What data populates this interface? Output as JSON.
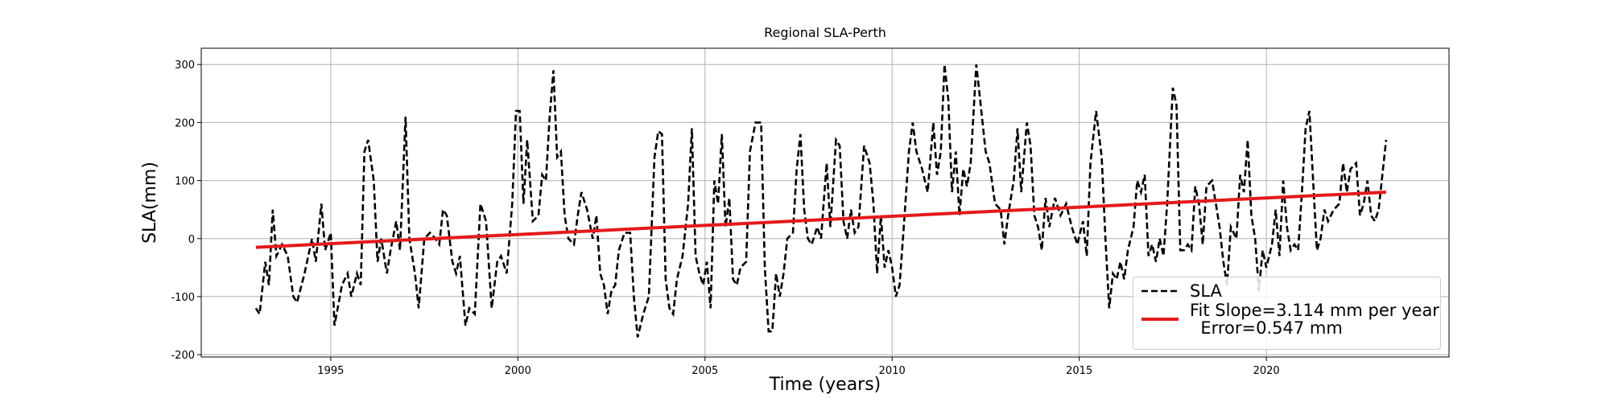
{
  "chart_data": {
    "type": "line",
    "title": "Regional SLA-Perth",
    "xlabel": "Time (years)",
    "ylabel": "SLA(mm)",
    "xlim": [
      1991.54,
      2024.88
    ],
    "ylim": [
      -204,
      328
    ],
    "xticks": [
      1995,
      2000,
      2005,
      2010,
      2015,
      2020
    ],
    "yticks": [
      -200,
      -100,
      0,
      100,
      200,
      300
    ],
    "grid": true,
    "legend": "lower right",
    "series": [
      {
        "name": "SLA",
        "color": "#000000",
        "style": "dashed",
        "x": [
          1993.0,
          1993.1,
          1993.25,
          1993.35,
          1993.45,
          1993.55,
          1993.7,
          1993.85,
          1994.0,
          1994.1,
          1994.3,
          1994.5,
          1994.6,
          1994.75,
          1994.85,
          1995.0,
          1995.1,
          1995.3,
          1995.45,
          1995.55,
          1995.7,
          1995.8,
          1995.9,
          1996.0,
          1996.15,
          1996.25,
          1996.35,
          1996.5,
          1996.6,
          1996.75,
          1996.85,
          1997.0,
          1997.1,
          1997.25,
          1997.35,
          1997.5,
          1997.65,
          1997.8,
          1997.9,
          1998.0,
          1998.1,
          1998.25,
          1998.35,
          1998.45,
          1998.6,
          1998.7,
          1998.85,
          1999.0,
          1999.15,
          1999.3,
          1999.45,
          1999.55,
          1999.7,
          1999.85,
          1999.95,
          2000.05,
          2000.15,
          2000.25,
          2000.4,
          2000.55,
          2000.65,
          2000.75,
          2000.85,
          2000.95,
          2001.05,
          2001.15,
          2001.25,
          2001.35,
          2001.5,
          2001.6,
          2001.7,
          2001.85,
          2002.0,
          2002.1,
          2002.2,
          2002.3,
          2002.4,
          2002.5,
          2002.6,
          2002.7,
          2002.85,
          2003.0,
          2003.1,
          2003.2,
          2003.35,
          2003.5,
          2003.65,
          2003.75,
          2003.85,
          2003.95,
          2004.05,
          2004.15,
          2004.25,
          2004.4,
          2004.55,
          2004.65,
          2004.75,
          2004.85,
          2004.95,
          2005.05,
          2005.15,
          2005.25,
          2005.35,
          2005.45,
          2005.55,
          2005.65,
          2005.75,
          2005.85,
          2005.95,
          2006.1,
          2006.2,
          2006.35,
          2006.5,
          2006.6,
          2006.7,
          2006.8,
          2006.9,
          2007.0,
          2007.1,
          2007.2,
          2007.35,
          2007.45,
          2007.55,
          2007.65,
          2007.75,
          2007.85,
          2008.0,
          2008.1,
          2008.25,
          2008.35,
          2008.5,
          2008.6,
          2008.7,
          2008.8,
          2008.9,
          2009.0,
          2009.1,
          2009.25,
          2009.4,
          2009.5,
          2009.6,
          2009.7,
          2009.8,
          2009.9,
          2010.0,
          2010.1,
          2010.2,
          2010.3,
          2010.45,
          2010.55,
          2010.65,
          2010.8,
          2010.95,
          2011.1,
          2011.2,
          2011.3,
          2011.4,
          2011.5,
          2011.6,
          2011.7,
          2011.8,
          2011.9,
          2012.0,
          2012.1,
          2012.25,
          2012.35,
          2012.5,
          2012.6,
          2012.75,
          2012.9,
          2013.0,
          2013.1,
          2013.25,
          2013.35,
          2013.45,
          2013.6,
          2013.7,
          2013.8,
          2013.9,
          2014.0,
          2014.1,
          2014.2,
          2014.35,
          2014.5,
          2014.65,
          2014.8,
          2014.95,
          2015.1,
          2015.2,
          2015.3,
          2015.45,
          2015.6,
          2015.7,
          2015.8,
          2015.9,
          2016.0,
          2016.1,
          2016.2,
          2016.3,
          2016.45,
          2016.55,
          2016.65,
          2016.75,
          2016.85,
          2016.95,
          2017.05,
          2017.15,
          2017.25,
          2017.35,
          2017.5,
          2017.6,
          2017.7,
          2017.8,
          2017.9,
          2018.0,
          2018.1,
          2018.2,
          2018.3,
          2018.4,
          2018.55,
          2018.65,
          2018.75,
          2018.85,
          2018.95,
          2019.05,
          2019.2,
          2019.3,
          2019.4,
          2019.5,
          2019.6,
          2019.7,
          2019.8,
          2019.9,
          2020.0,
          2020.15,
          2020.25,
          2020.35,
          2020.45,
          2020.55,
          2020.65,
          2020.75,
          2020.85,
          2020.95,
          2021.05,
          2021.15,
          2021.25,
          2021.35,
          2021.45,
          2021.55,
          2021.65,
          2021.8,
          2021.95,
          2022.05,
          2022.15,
          2022.25,
          2022.4,
          2022.5,
          2022.6,
          2022.7,
          2022.8,
          2022.9,
          2023.0,
          2023.2
        ],
        "values": [
          -120,
          -130,
          -40,
          -80,
          50,
          -30,
          -10,
          -30,
          -100,
          -110,
          -60,
          0,
          -40,
          60,
          -20,
          10,
          -150,
          -80,
          -60,
          -100,
          -60,
          -80,
          150,
          170,
          100,
          -40,
          0,
          -60,
          -20,
          30,
          -20,
          210,
          0,
          -60,
          -120,
          0,
          10,
          0,
          -10,
          50,
          40,
          -40,
          -60,
          -30,
          -150,
          -120,
          -130,
          60,
          30,
          -120,
          -40,
          -30,
          -60,
          60,
          220,
          220,
          60,
          170,
          30,
          40,
          110,
          100,
          210,
          290,
          140,
          150,
          40,
          0,
          -10,
          40,
          80,
          50,
          0,
          40,
          -60,
          -80,
          -130,
          -90,
          -80,
          -20,
          10,
          10,
          -100,
          -170,
          -130,
          -100,
          140,
          185,
          180,
          -70,
          -120,
          -130,
          -70,
          -30,
          60,
          190,
          -30,
          -60,
          -80,
          -40,
          -120,
          100,
          60,
          180,
          20,
          70,
          -70,
          -80,
          -50,
          -40,
          150,
          200,
          200,
          -50,
          -160,
          -160,
          -60,
          -100,
          -60,
          0,
          10,
          120,
          180,
          50,
          0,
          -10,
          20,
          0,
          130,
          20,
          170,
          160,
          30,
          0,
          50,
          10,
          20,
          160,
          130,
          60,
          -60,
          40,
          -50,
          -20,
          -50,
          -100,
          -80,
          10,
          150,
          200,
          150,
          120,
          80,
          200,
          110,
          150,
          300,
          240,
          80,
          150,
          40,
          120,
          90,
          130,
          300,
          240,
          150,
          130,
          60,
          50,
          -10,
          40,
          100,
          190,
          80,
          200,
          160,
          40,
          20,
          -20,
          70,
          20,
          70,
          40,
          60,
          20,
          -10,
          30,
          -30,
          130,
          220,
          140,
          0,
          -120,
          -60,
          -70,
          -40,
          -70,
          -20,
          20,
          100,
          80,
          110,
          -30,
          -10,
          -40,
          0,
          -30,
          60,
          260,
          230,
          -20,
          -20,
          -10,
          -20,
          90,
          60,
          -10,
          90,
          100,
          60,
          20,
          -40,
          -80,
          20,
          0,
          110,
          80,
          170,
          40,
          0,
          -90,
          -20,
          -50,
          -10,
          50,
          -30,
          100,
          20,
          -20,
          -10,
          -20,
          80,
          190,
          220,
          100,
          -20,
          0,
          50,
          30,
          50,
          60,
          130,
          80,
          120,
          130,
          40,
          60,
          100,
          40,
          30,
          50,
          170
        ]
      },
      {
        "name": "Fit Slope=3.114 mm per year\n  Error=0.547 mm",
        "color": "#e41a1c",
        "style": "solid",
        "x": [
          1993.0,
          2023.2
        ],
        "values": [
          -15,
          80
        ]
      }
    ]
  }
}
